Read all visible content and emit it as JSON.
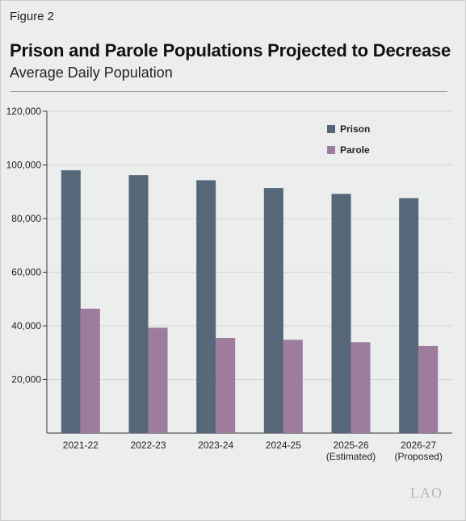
{
  "figure_label": "Figure 2",
  "logo_text": "LAO",
  "chart_data": {
    "type": "bar",
    "title": "Prison and Parole Populations Projected to Decrease",
    "subtitle": "Average Daily Population",
    "categories": [
      [
        "2021-22"
      ],
      [
        "2022-23"
      ],
      [
        "2023-24"
      ],
      [
        "2024-25"
      ],
      [
        "2025-26",
        "(Estimated)"
      ],
      [
        "2026-27",
        "(Proposed)"
      ]
    ],
    "series": [
      {
        "name": "Prison",
        "color": "#556778",
        "values": [
          98000,
          96200,
          94300,
          91400,
          89200,
          87600
        ]
      },
      {
        "name": "Parole",
        "color": "#9d7c9e",
        "values": [
          46400,
          39300,
          35500,
          34800,
          33900,
          32500
        ]
      }
    ],
    "ylim": [
      0,
      120000
    ],
    "yticks": [
      "20,000",
      "40,000",
      "60,000",
      "80,000",
      "100,000",
      "120,000"
    ],
    "ytick_values": [
      20000,
      40000,
      60000,
      80000,
      100000,
      120000
    ],
    "legend_position": "top-right",
    "grid": true
  }
}
